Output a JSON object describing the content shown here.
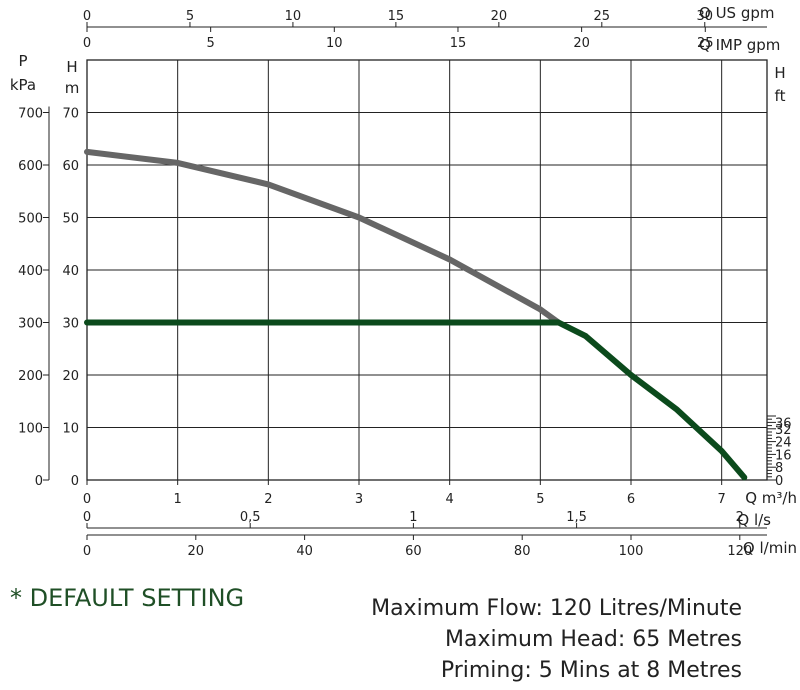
{
  "chart_data": {
    "type": "line",
    "xlabel": "Q m³/h",
    "ylabel_left": "H m",
    "ylabel_pressure": "P kPa",
    "ylabel_right": "H ft",
    "xlim": [
      0,
      7.5
    ],
    "ylim": [
      0,
      80
    ],
    "grid": true,
    "x_ticks": [
      "0",
      "1",
      "2",
      "3",
      "4",
      "5",
      "6",
      "7"
    ],
    "y_ticks_m": [
      "0",
      "10",
      "20",
      "30",
      "40",
      "50",
      "60",
      "70"
    ],
    "y_ticks_kpa": [
      "0",
      "100",
      "200",
      "300",
      "400",
      "500",
      "600",
      "700"
    ],
    "y_ticks_ft": [
      "0",
      "8",
      "16",
      "24",
      "32",
      "36"
    ],
    "secondary_axes": [
      {
        "label": "Q US gpm",
        "ticks": [
          "0",
          "5",
          "10",
          "15",
          "20",
          "25",
          "30"
        ]
      },
      {
        "label": "Q IMP gpm",
        "ticks": [
          "0",
          "5",
          "10",
          "15",
          "20",
          "25"
        ]
      },
      {
        "label": "Q l/s",
        "ticks": [
          "0",
          "0,5",
          "1",
          "1,5",
          "2"
        ]
      },
      {
        "label": "Q l/min",
        "ticks": [
          "0",
          "20",
          "40",
          "60",
          "80",
          "100",
          "120"
        ]
      }
    ],
    "series": [
      {
        "color": "#666666",
        "x": [
          0,
          1,
          2,
          3,
          4,
          5,
          5.2
        ],
        "y": [
          62.5,
          60.4,
          56.3,
          50,
          42,
          32.5,
          30
        ]
      },
      {
        "color": "#0b4a1c",
        "x": [
          0,
          1,
          2,
          3,
          4,
          5,
          5.2,
          5.5,
          6,
          6.5,
          7,
          7.25
        ],
        "y": [
          30,
          30,
          30,
          30,
          30,
          30,
          30,
          27.4,
          20,
          13.5,
          5.5,
          0.5
        ]
      }
    ]
  },
  "notes": {
    "default": "* DEFAULT SETTING",
    "specs": [
      "Maximum Flow: 120 Litres/Minute",
      "Maximum Head: 65 Metres",
      "Priming: 5 Mins at 8 Metres"
    ]
  }
}
